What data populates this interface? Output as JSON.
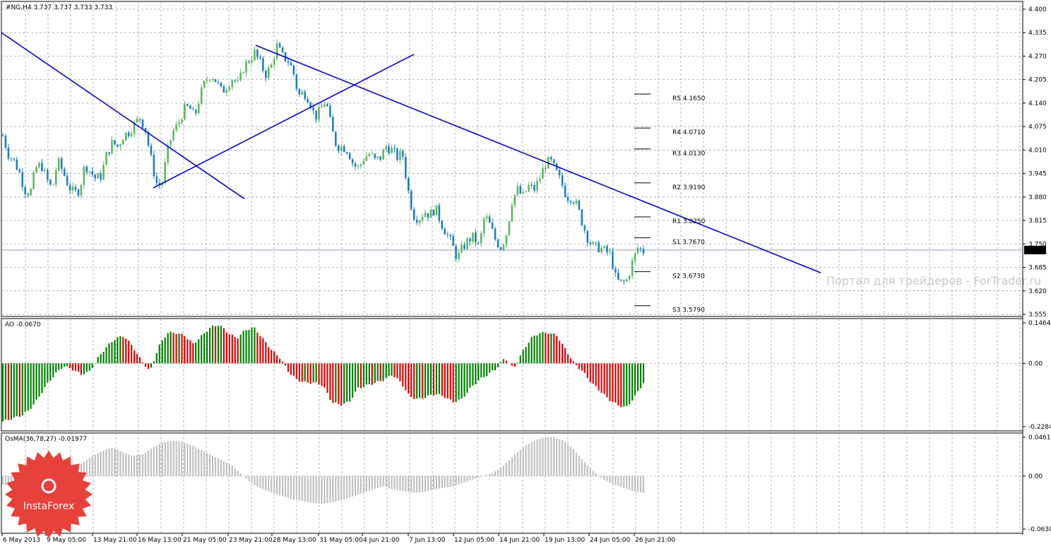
{
  "header": {
    "symbol_info": "#NG,H4  3.737 3.737 3.733 3.733"
  },
  "watermark": "Портал для трейдеров - ForTrader.ru",
  "logo_text": "InstaForex",
  "colors": {
    "bull": "#5cb85c",
    "bear": "#1f7fc0",
    "trend": "#0000cc",
    "hist_up": "#008000",
    "hist_down": "#e00000",
    "osma": "#c0c0c0"
  },
  "chart_data": [
    {
      "type": "candlestick",
      "title": "#NG,H4  3.737 3.737 3.733 3.733",
      "ylim": [
        3.555,
        4.4
      ],
      "yticks": [
        "4.400",
        "4.335",
        "4.270",
        "4.205",
        "4.140",
        "4.075",
        "4.010",
        "3.945",
        "3.880",
        "3.815",
        "3.750",
        "3.685",
        "3.620",
        "3.555"
      ],
      "last_price": "3.733",
      "pivots": [
        {
          "label": "R5 4.1650",
          "value": 4.165
        },
        {
          "label": "R4 4.0710",
          "value": 4.071
        },
        {
          "label": "R3 4.0130",
          "value": 4.013
        },
        {
          "label": "R2 3.9190",
          "value": 3.919
        },
        {
          "label": "R1 3.8250",
          "value": 3.825
        },
        {
          "label": "S1 3.7670",
          "value": 3.767
        },
        {
          "label": "S2 3.6730",
          "value": 3.673
        },
        {
          "label": "S3 3.5790",
          "value": 3.579
        }
      ],
      "xticks": [
        "6 May 2013",
        "9 May 05:00",
        "13 May 21:00",
        "16 May 13:00",
        "21 May 05:00",
        "23 May 21:00",
        "28 May 13:00",
        "31 May 05:00",
        "4 Jun 21:00",
        "7 Jun 13:00",
        "12 Jun 05:00",
        "14 Jun 21:00",
        "19 Jun 13:00",
        "24 Jun 05:00",
        "26 Jun 21:00"
      ],
      "close_path": [
        4.05,
        4.0,
        3.98,
        3.95,
        3.9,
        3.89,
        3.96,
        3.97,
        3.93,
        3.9,
        3.98,
        3.95,
        3.91,
        3.89,
        3.9,
        3.97,
        3.95,
        3.93,
        3.94,
        4.0,
        4.03,
        4.02,
        4.05,
        4.06,
        4.08,
        4.1,
        4.07,
        3.99,
        3.92,
        3.91,
        4.0,
        4.06,
        4.08,
        4.12,
        4.13,
        4.1,
        4.16,
        4.2,
        4.22,
        4.2,
        4.17,
        4.19,
        4.21,
        4.19,
        4.24,
        4.26,
        4.28,
        4.25,
        4.22,
        4.24,
        4.3,
        4.27,
        4.26,
        4.23,
        4.16,
        4.17,
        4.15,
        4.1,
        4.12,
        4.15,
        4.07,
        4.02,
        4.02,
        4.01,
        3.97,
        3.96,
        3.99,
        4.0,
        3.98,
        3.99,
        4.02,
        4.01,
        3.99,
        4.0,
        3.9,
        3.83,
        3.82,
        3.84,
        3.83,
        3.85,
        3.81,
        3.78,
        3.75,
        3.71,
        3.74,
        3.76,
        3.77,
        3.74,
        3.83,
        3.8,
        3.76,
        3.74,
        3.78,
        3.87,
        3.9,
        3.88,
        3.91,
        3.9,
        3.93,
        3.97,
        3.98,
        3.95,
        3.92,
        3.88,
        3.88,
        3.85,
        3.8,
        3.76,
        3.74,
        3.74,
        3.73,
        3.72,
        3.65,
        3.64,
        3.65,
        3.7,
        3.74,
        3.73
      ],
      "trendlines": [
        {
          "from": [
            "6 May",
            4.335
          ],
          "to": [
            "17 May",
            3.875
          ]
        },
        {
          "from": [
            "17 May",
            3.905
          ],
          "to": [
            "30 May",
            4.275
          ]
        },
        {
          "from": [
            "24 May",
            4.3
          ],
          "to": [
            "28 Jun",
            3.67
          ]
        }
      ]
    },
    {
      "type": "histogram",
      "title": "AO -0.0670",
      "ylim": [
        -0.2284,
        0.1464
      ],
      "yticks": [
        "0.1464",
        "0.00",
        "-0.2284"
      ],
      "values": [
        -0.21,
        -0.2,
        -0.19,
        -0.17,
        -0.13,
        -0.08,
        -0.04,
        -0.01,
        -0.02,
        -0.04,
        -0.03,
        0.02,
        0.06,
        0.09,
        0.1,
        0.06,
        0.01,
        -0.03,
        0.06,
        0.11,
        0.11,
        0.1,
        0.07,
        0.1,
        0.13,
        0.14,
        0.11,
        0.09,
        0.12,
        0.13,
        0.09,
        0.05,
        0.02,
        -0.03,
        -0.06,
        -0.07,
        -0.07,
        -0.08,
        -0.14,
        -0.15,
        -0.14,
        -0.09,
        -0.08,
        -0.07,
        -0.06,
        -0.04,
        -0.07,
        -0.12,
        -0.13,
        -0.12,
        -0.11,
        -0.12,
        -0.14,
        -0.13,
        -0.09,
        -0.06,
        -0.04,
        -0.02,
        0.02,
        -0.02,
        0.04,
        0.09,
        0.11,
        0.11,
        0.1,
        0.05,
        0.0,
        -0.03,
        -0.07,
        -0.1,
        -0.13,
        -0.15,
        -0.16,
        -0.12,
        -0.07
      ],
      "last_value": -0.067
    },
    {
      "type": "histogram",
      "title": "OsMA(36,78,27) -0.01977",
      "ylim": [
        -0.063,
        0.0461
      ],
      "yticks": [
        "0.04611",
        "0.00",
        "-0.06302"
      ],
      "values": [
        -0.01,
        -0.012,
        -0.01,
        -0.006,
        -0.003,
        0.0,
        0.004,
        0.01,
        0.016,
        0.024,
        0.03,
        0.034,
        0.028,
        0.024,
        0.026,
        0.034,
        0.04,
        0.042,
        0.04,
        0.036,
        0.03,
        0.024,
        0.018,
        0.012,
        0.0,
        -0.01,
        -0.016,
        -0.02,
        -0.024,
        -0.028,
        -0.03,
        -0.032,
        -0.033,
        -0.031,
        -0.028,
        -0.024,
        -0.02,
        -0.016,
        -0.012,
        -0.016,
        -0.018,
        -0.02,
        -0.019,
        -0.016,
        -0.014,
        -0.012,
        -0.008,
        -0.004,
        0.0,
        0.004,
        0.012,
        0.024,
        0.034,
        0.042,
        0.046,
        0.046,
        0.042,
        0.032,
        0.018,
        0.006,
        -0.004,
        -0.01,
        -0.014,
        -0.018,
        -0.02
      ],
      "last_value": -0.01977
    }
  ]
}
